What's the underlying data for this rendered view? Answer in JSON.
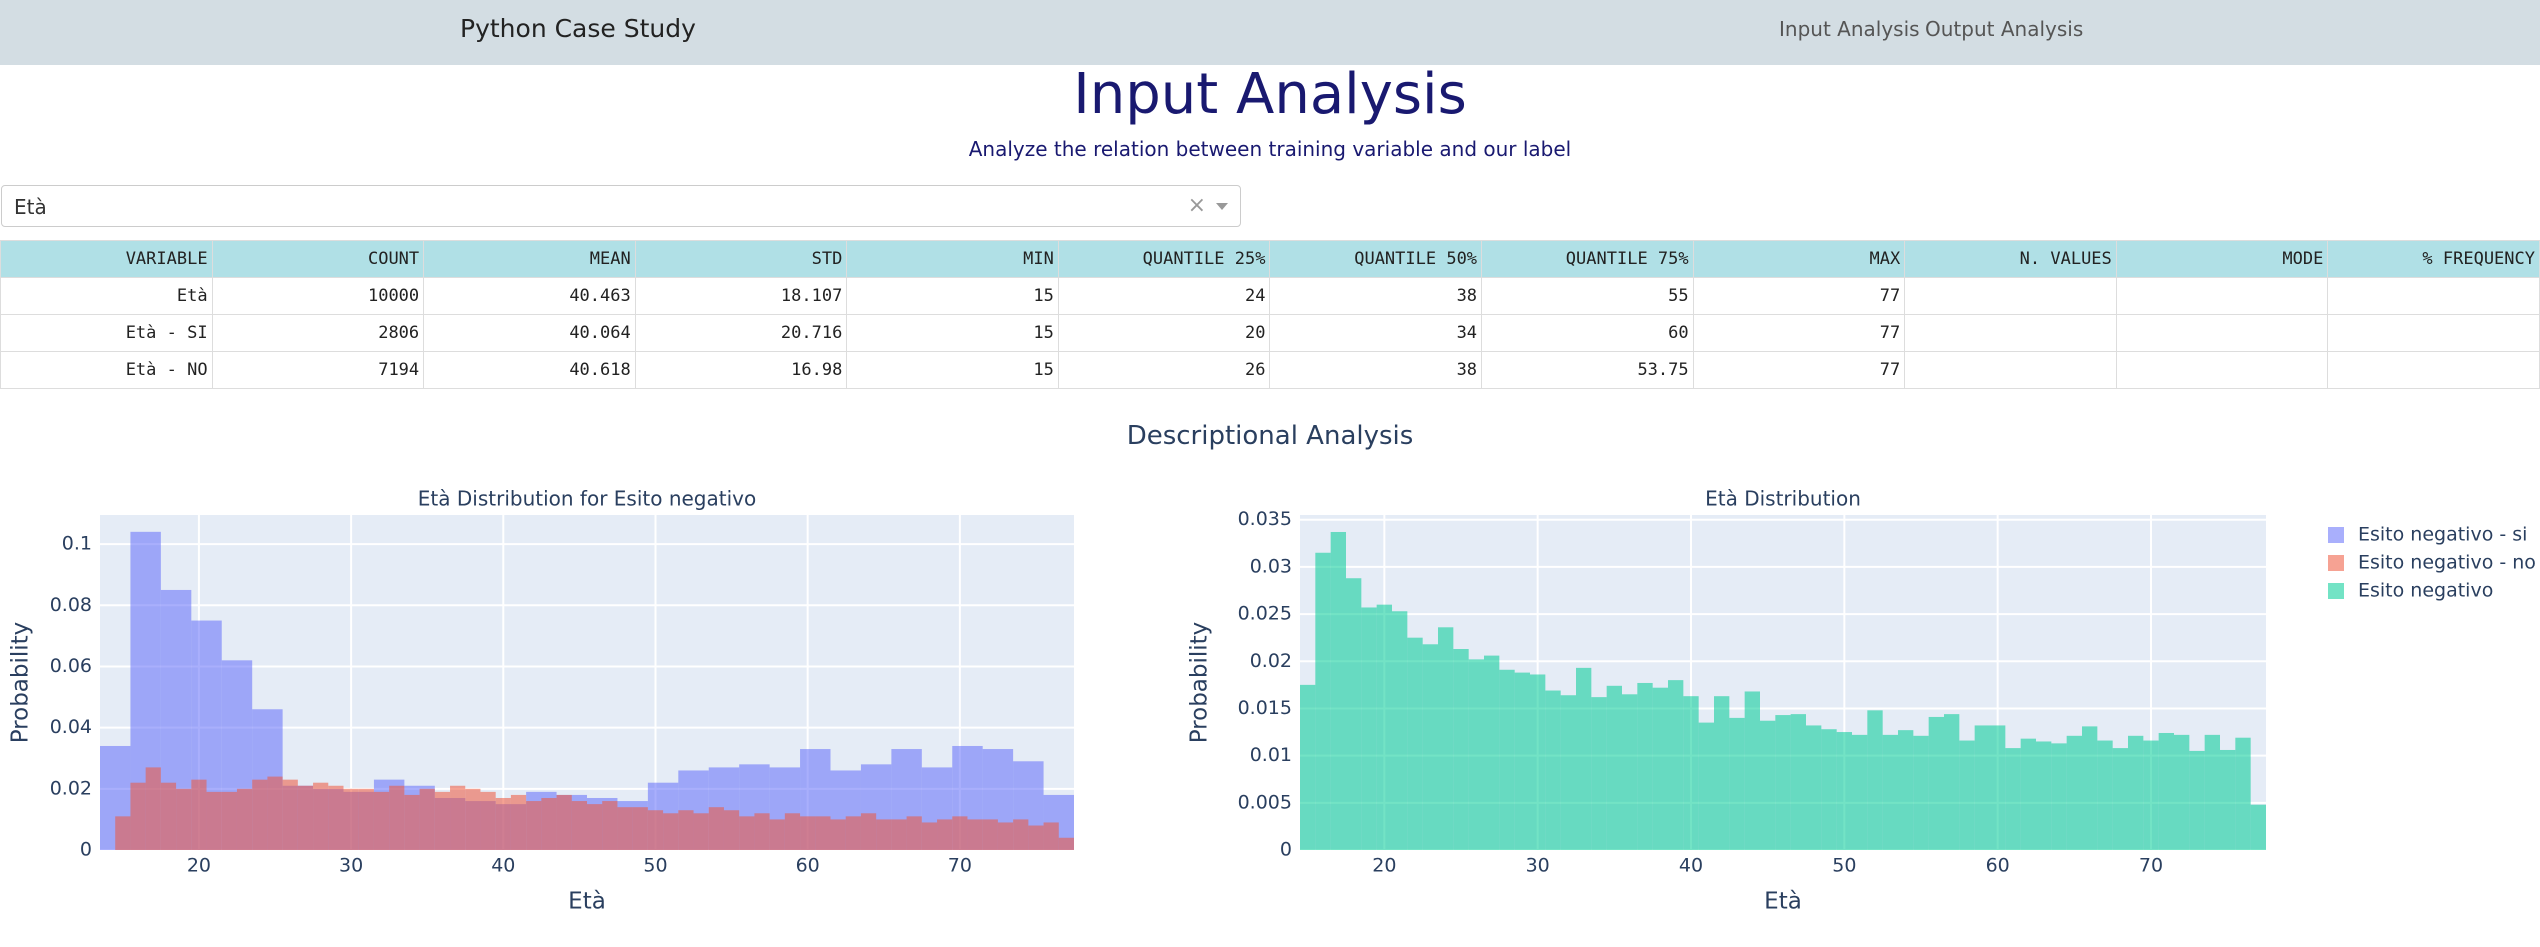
{
  "navbar": {
    "brand": "Python Case Study",
    "links": [
      "Input Analysis",
      "Output Analysis"
    ]
  },
  "header": {
    "title": "Input Analysis",
    "subtitle": "Analyze the relation between training variable and our label"
  },
  "dropdown": {
    "value": "Età"
  },
  "table": {
    "columns": [
      "VARIABLE",
      "COUNT",
      "MEAN",
      "STD",
      "MIN",
      "QUANTILE 25%",
      "QUANTILE 50%",
      "QUANTILE 75%",
      "MAX",
      "N. VALUES",
      "MODE",
      "% FREQUENCY"
    ],
    "rows": [
      [
        "Età",
        10000,
        40.463,
        18.107,
        15,
        24,
        38,
        55,
        77
      ],
      [
        "Età - SI",
        2806,
        40.064,
        20.716,
        15,
        20,
        34,
        60,
        77
      ],
      [
        "Età - NO",
        7194,
        40.618,
        16.98,
        15,
        26,
        38,
        53.75,
        77
      ]
    ]
  },
  "section_title": "Descriptional Analysis",
  "chart_data": [
    {
      "type": "histogram",
      "title": "Età Distribution for Esito negativo",
      "xlabel": "Età",
      "ylabel": "Probability",
      "xlim": [
        13.5,
        77.5
      ],
      "ylim": [
        0,
        0.1095
      ],
      "xticks": [
        20,
        30,
        40,
        50,
        60,
        70
      ],
      "yticks": [
        0,
        0.02,
        0.04,
        0.06,
        0.08,
        0.1
      ],
      "grid": true,
      "opacity": 0.55,
      "series": [
        {
          "name": "Esito negativo - si",
          "color": "#636efa",
          "bins": [
            13.5,
            15.5,
            17.5,
            19.5,
            21.5,
            23.5,
            25.5,
            27.5,
            29.5,
            31.5,
            33.5,
            35.5,
            37.5,
            39.5,
            41.5,
            43.5,
            45.5,
            47.5,
            49.5,
            51.5,
            53.5,
            55.5,
            57.5,
            59.5,
            61.5,
            63.5,
            65.5,
            67.5,
            69.5,
            71.5,
            73.5,
            75.5,
            77.5
          ],
          "values": [
            0.034,
            0.104,
            0.085,
            0.075,
            0.062,
            0.046,
            0.021,
            0.02,
            0.019,
            0.023,
            0.021,
            0.017,
            0.016,
            0.015,
            0.019,
            0.018,
            0.017,
            0.016,
            0.022,
            0.026,
            0.027,
            0.028,
            0.027,
            0.033,
            0.026,
            0.028,
            0.033,
            0.027,
            0.034,
            0.033,
            0.029,
            0.018
          ]
        },
        {
          "name": "Esito negativo - no",
          "color": "#ef553b",
          "bins": [
            14.5,
            15.5,
            16.5,
            17.5,
            18.5,
            19.5,
            20.5,
            21.5,
            22.5,
            23.5,
            24.5,
            25.5,
            26.5,
            27.5,
            28.5,
            29.5,
            30.5,
            31.5,
            32.5,
            33.5,
            34.5,
            35.5,
            36.5,
            37.5,
            38.5,
            39.5,
            40.5,
            41.5,
            42.5,
            43.5,
            44.5,
            45.5,
            46.5,
            47.5,
            48.5,
            49.5,
            50.5,
            51.5,
            52.5,
            53.5,
            54.5,
            55.5,
            56.5,
            57.5,
            58.5,
            59.5,
            60.5,
            61.5,
            62.5,
            63.5,
            64.5,
            65.5,
            66.5,
            67.5,
            68.5,
            69.5,
            70.5,
            71.5,
            72.5,
            73.5,
            74.5,
            75.5,
            76.5,
            77.5
          ],
          "values": [
            0.011,
            0.022,
            0.027,
            0.022,
            0.02,
            0.023,
            0.019,
            0.019,
            0.02,
            0.023,
            0.024,
            0.023,
            0.021,
            0.022,
            0.021,
            0.02,
            0.02,
            0.019,
            0.021,
            0.018,
            0.02,
            0.019,
            0.021,
            0.02,
            0.019,
            0.017,
            0.018,
            0.016,
            0.017,
            0.018,
            0.016,
            0.015,
            0.016,
            0.014,
            0.014,
            0.013,
            0.012,
            0.013,
            0.012,
            0.014,
            0.013,
            0.011,
            0.012,
            0.01,
            0.012,
            0.011,
            0.011,
            0.01,
            0.011,
            0.012,
            0.01,
            0.01,
            0.011,
            0.009,
            0.01,
            0.011,
            0.01,
            0.01,
            0.009,
            0.01,
            0.008,
            0.009,
            0.004
          ]
        }
      ]
    },
    {
      "type": "histogram",
      "title": "Età Distribution",
      "xlabel": "Età",
      "ylabel": "Probability",
      "xlim": [
        14.5,
        77.5
      ],
      "ylim": [
        0,
        0.0355
      ],
      "xticks": [
        20,
        30,
        40,
        50,
        60,
        70
      ],
      "yticks": [
        0,
        0.005,
        0.01,
        0.015,
        0.02,
        0.025,
        0.03,
        0.035
      ],
      "grid": true,
      "opacity": 0.55,
      "series": [
        {
          "name": "Esito negativo",
          "color": "#00cc96",
          "bins": [
            14.5,
            15.5,
            16.5,
            17.5,
            18.5,
            19.5,
            20.5,
            21.5,
            22.5,
            23.5,
            24.5,
            25.5,
            26.5,
            27.5,
            28.5,
            29.5,
            30.5,
            31.5,
            32.5,
            33.5,
            34.5,
            35.5,
            36.5,
            37.5,
            38.5,
            39.5,
            40.5,
            41.5,
            42.5,
            43.5,
            44.5,
            45.5,
            46.5,
            47.5,
            48.5,
            49.5,
            50.5,
            51.5,
            52.5,
            53.5,
            54.5,
            55.5,
            56.5,
            57.5,
            58.5,
            59.5,
            60.5,
            61.5,
            62.5,
            63.5,
            64.5,
            65.5,
            66.5,
            67.5,
            68.5,
            69.5,
            70.5,
            71.5,
            72.5,
            73.5,
            74.5,
            75.5,
            76.5,
            77.5
          ],
          "values": [
            0.0175,
            0.0315,
            0.0337,
            0.0288,
            0.0257,
            0.026,
            0.0253,
            0.0225,
            0.0218,
            0.0236,
            0.0213,
            0.0202,
            0.0206,
            0.0191,
            0.0188,
            0.0186,
            0.0169,
            0.0164,
            0.0193,
            0.0162,
            0.0174,
            0.0165,
            0.0177,
            0.0172,
            0.018,
            0.0163,
            0.0135,
            0.0163,
            0.014,
            0.0168,
            0.0137,
            0.0143,
            0.0144,
            0.0132,
            0.0128,
            0.0125,
            0.0122,
            0.0148,
            0.0122,
            0.0127,
            0.0121,
            0.0141,
            0.0144,
            0.0116,
            0.0132,
            0.0132,
            0.0108,
            0.0118,
            0.0115,
            0.0113,
            0.0121,
            0.0131,
            0.0116,
            0.0108,
            0.0121,
            0.0116,
            0.0124,
            0.0122,
            0.0105,
            0.0122,
            0.0106,
            0.0119,
            0.0048
          ]
        }
      ]
    }
  ]
}
